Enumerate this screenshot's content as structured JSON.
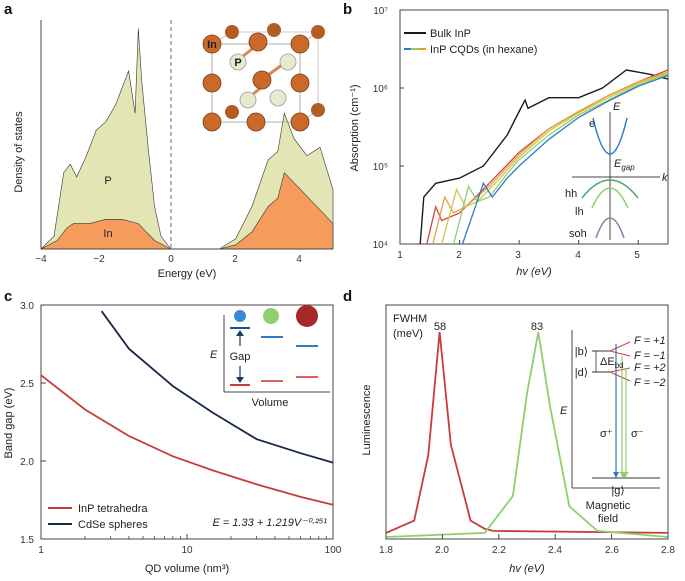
{
  "figure": {
    "a": {
      "label": "a",
      "xlabel": "Energy (eV)",
      "ylabel": "Density of states",
      "xticks": [
        "−4",
        "−2",
        "0",
        "2",
        "4"
      ],
      "band_labels": {
        "p": "P",
        "in": "In"
      },
      "inset_atom_labels": {
        "in": "In",
        "p": "P"
      }
    },
    "b": {
      "label": "b",
      "xlabel": "hv (eV)",
      "ylabel": "Absorption (cm⁻¹)",
      "xticks": [
        "1",
        "2",
        "3",
        "4",
        "5"
      ],
      "yticks": [
        "10⁴",
        "10⁵",
        "10⁶",
        "10⁷"
      ],
      "legend": [
        "Bulk InP",
        "InP CQDs (in hexane)"
      ],
      "inset": {
        "e_axis": "E",
        "k_axis": "k",
        "egap": "E_gap",
        "e": "e",
        "hh": "hh",
        "lh": "lh",
        "soh": "soh"
      }
    },
    "c": {
      "label": "c",
      "xlabel": "QD volume (nm³)",
      "ylabel": "Band gap (eV)",
      "xticks": [
        "1",
        "10",
        "100"
      ],
      "yticks": [
        "1.5",
        "2.0",
        "2.5",
        "3.0"
      ],
      "legend": [
        "InP tetrahedra",
        "CdSe spheres"
      ],
      "equation": "E = 1.33 + 1.219V⁻⁰·²⁵¹",
      "inset": {
        "e_axis": "E",
        "gap": "Gap",
        "volume": "Volume"
      }
    },
    "d": {
      "label": "d",
      "xlabel": "hv (eV)",
      "ylabel": "Luminescence",
      "xticks": [
        "1.8",
        "2.0",
        "2.2",
        "2.4",
        "2.6",
        "2.8"
      ],
      "fwhm_title": "FWHM",
      "fwhm_unit": "(meV)",
      "peak_labels": [
        "58",
        "83"
      ],
      "inset": {
        "states": [
          "|b⟩",
          "|d⟩",
          "|g⟩"
        ],
        "f_levels": [
          "F = +1",
          "F = −1",
          "F = +2",
          "F = −2"
        ],
        "delta": "ΔE",
        "delta_sub": "bd",
        "e_axis": "E",
        "sigma_plus": "σ⁺",
        "sigma_minus": "σ⁻",
        "x_title": [
          "Magnetic",
          "field"
        ]
      }
    }
  },
  "colors": {
    "p_fill": "#e3e6b4",
    "in_fill": "#f59c5c",
    "bulk": "#1a1a1a",
    "inp_red": "#c83c3c",
    "cdse_navy": "#16284a",
    "green": "#8fcf6e",
    "blue_level": "#2e7bc4"
  },
  "chart_data": [
    {
      "panel": "a",
      "type": "area",
      "title": "",
      "xlabel": "Energy (eV)",
      "ylabel": "Density of states",
      "xlim": [
        -4,
        5
      ],
      "series": [
        {
          "name": "P",
          "x": [
            -4,
            -3.6,
            -3.3,
            -3.1,
            -2.9,
            -2.6,
            -2.3,
            -2.0,
            -1.7,
            -1.5,
            -1.3,
            -1.1,
            -1.0,
            -0.9,
            -0.7,
            -0.5,
            -0.3,
            0,
            1.5,
            2.0,
            2.5,
            3.0,
            3.3,
            3.5,
            3.8,
            4.2,
            4.6,
            5.0
          ],
          "values": [
            0,
            0.15,
            0.9,
            1.0,
            0.85,
            1.1,
            1.4,
            1.5,
            1.7,
            1.9,
            2.1,
            1.6,
            2.6,
            2.0,
            1.2,
            0.5,
            0.15,
            0,
            0,
            0.12,
            0.5,
            1.05,
            1.15,
            1.6,
            1.3,
            1.1,
            1.2,
            0.7
          ]
        },
        {
          "name": "In",
          "x": [
            -4,
            -3.5,
            -3.2,
            -3.0,
            -2.5,
            -2.0,
            -1.5,
            -1.0,
            -0.5,
            0,
            1.5,
            2.0,
            2.5,
            3.0,
            3.3,
            3.5,
            4.0,
            4.5,
            5.0
          ],
          "values": [
            0,
            0.1,
            0.25,
            0.3,
            0.3,
            0.35,
            0.35,
            0.3,
            0.1,
            0,
            0,
            0.05,
            0.2,
            0.5,
            0.6,
            0.9,
            0.7,
            0.5,
            0.3
          ]
        }
      ]
    },
    {
      "panel": "b",
      "type": "line",
      "title": "",
      "xlabel": "hv (eV)",
      "ylabel": "Absorption (cm⁻¹)",
      "xlim": [
        1,
        5.5
      ],
      "ylim": [
        10000,
        10000000
      ],
      "yscale": "log",
      "series": [
        {
          "name": "Bulk InP",
          "x": [
            1.34,
            1.4,
            1.6,
            2.0,
            2.4,
            2.8,
            3.0,
            3.1,
            3.15,
            3.5,
            4.0,
            4.4,
            4.8,
            5.2,
            5.5
          ],
          "values": [
            10000,
            40000,
            60000,
            70000,
            100000,
            250000,
            500000,
            700000,
            550000,
            750000,
            750000,
            1000000,
            1700000,
            1500000,
            1300000
          ]
        },
        {
          "name": "InP CQD 1",
          "x": [
            1.45,
            1.6,
            1.7,
            2.0,
            2.5,
            3.0,
            3.5,
            4.0,
            4.5,
            5.0,
            5.5
          ],
          "values": [
            10000,
            30000,
            20000,
            25000,
            60000,
            150000,
            300000,
            500000,
            800000,
            1200000,
            1700000
          ]
        },
        {
          "name": "InP CQD 2",
          "x": [
            1.55,
            1.75,
            1.9,
            2.1,
            2.5,
            3.0,
            3.5,
            4.0,
            4.5,
            5.0,
            5.5
          ],
          "values": [
            10000,
            40000,
            25000,
            30000,
            55000,
            140000,
            300000,
            500000,
            800000,
            1200000,
            1600000
          ]
        },
        {
          "name": "InP CQD 3",
          "x": [
            1.7,
            1.95,
            2.1,
            2.3,
            2.6,
            3.0,
            3.5,
            4.0,
            4.5,
            5.0,
            5.5
          ],
          "values": [
            10000,
            50000,
            30000,
            35000,
            60000,
            130000,
            280000,
            480000,
            750000,
            1150000,
            1550000
          ]
        },
        {
          "name": "InP CQD 4",
          "x": [
            1.9,
            2.15,
            2.3,
            2.5,
            2.8,
            3.0,
            3.5,
            4.0,
            4.5,
            5.0,
            5.5
          ],
          "values": [
            10000,
            55000,
            35000,
            40000,
            80000,
            120000,
            250000,
            450000,
            700000,
            1100000,
            1500000
          ]
        },
        {
          "name": "InP CQD 5",
          "x": [
            2.05,
            2.4,
            2.55,
            2.8,
            3.0,
            3.5,
            4.0,
            4.5,
            5.0,
            5.5
          ],
          "values": [
            10000,
            60000,
            40000,
            70000,
            100000,
            220000,
            420000,
            680000,
            1050000,
            1450000
          ]
        }
      ]
    },
    {
      "panel": "c",
      "type": "line",
      "title": "",
      "xlabel": "QD volume (nm³)",
      "ylabel": "Band gap (eV)",
      "xlim": [
        1,
        100
      ],
      "ylim": [
        1.5,
        3.0
      ],
      "xscale": "log",
      "series": [
        {
          "name": "InP tetrahedra",
          "x": [
            1,
            2,
            4,
            8,
            15,
            30,
            60,
            100
          ],
          "values": [
            2.55,
            2.33,
            2.16,
            2.03,
            1.94,
            1.85,
            1.77,
            1.72
          ]
        },
        {
          "name": "CdSe spheres",
          "x": [
            2.6,
            4,
            8,
            15,
            30,
            60,
            100
          ],
          "values": [
            2.96,
            2.72,
            2.48,
            2.31,
            2.14,
            2.05,
            1.99
          ]
        }
      ]
    },
    {
      "panel": "d",
      "type": "line",
      "title": "",
      "xlabel": "hv (eV)",
      "ylabel": "Luminescence",
      "xlim": [
        1.8,
        2.8
      ],
      "series": [
        {
          "name": "58 meV peak",
          "x": [
            1.8,
            1.9,
            1.95,
            1.99,
            2.03,
            2.1,
            2.15,
            2.18,
            2.8
          ],
          "values": [
            0.02,
            0.08,
            0.4,
            1.0,
            0.45,
            0.08,
            0.04,
            0.03,
            0.02
          ]
        },
        {
          "name": "83 meV peak",
          "x": [
            1.8,
            2.15,
            2.25,
            2.3,
            2.34,
            2.38,
            2.45,
            2.55,
            2.8
          ],
          "values": [
            0.0,
            0.02,
            0.2,
            0.7,
            1.0,
            0.65,
            0.15,
            0.03,
            0.0
          ]
        }
      ]
    }
  ]
}
